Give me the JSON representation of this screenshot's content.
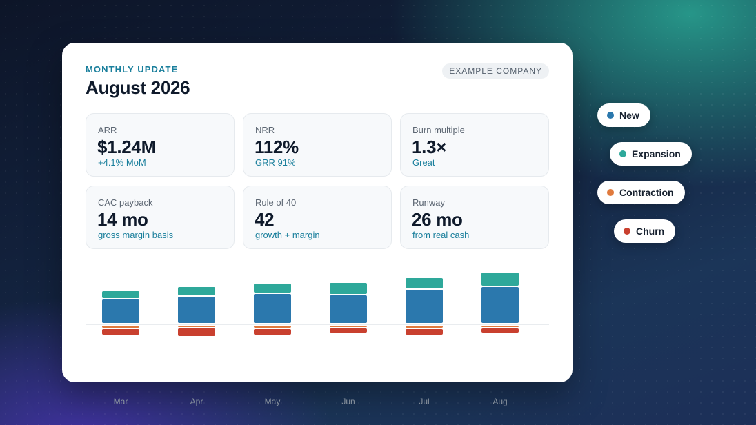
{
  "header": {
    "eyebrow": "MONTHLY UPDATE",
    "title": "August 2026",
    "company_badge": "EXAMPLE COMPANY"
  },
  "kpis": [
    {
      "label": "ARR",
      "value": "$1.24M",
      "sub": "+4.1% MoM"
    },
    {
      "label": "NRR",
      "value": "112%",
      "sub": "GRR 91%"
    },
    {
      "label": "Burn multiple",
      "value": "1.3×",
      "sub": "Great"
    },
    {
      "label": "CAC payback",
      "value": "14 mo",
      "sub": "gross margin basis"
    },
    {
      "label": "Rule of 40",
      "value": "42",
      "sub": "growth + margin"
    },
    {
      "label": "Runway",
      "value": "26 mo",
      "sub": "from real cash"
    }
  ],
  "legend": [
    {
      "label": "New",
      "color": "#2b78ad"
    },
    {
      "label": "Expansion",
      "color": "#2ea89a"
    },
    {
      "label": "Contraction",
      "color": "#e07a3d"
    },
    {
      "label": "Churn",
      "color": "#c9402f"
    }
  ],
  "chart_data": {
    "type": "bar",
    "stacked": true,
    "categories": [
      "Mar",
      "Apr",
      "May",
      "Jun",
      "Jul",
      "Aug"
    ],
    "series": [
      {
        "name": "New",
        "color": "#2b78ad",
        "values": [
          34,
          38,
          42,
          40,
          48,
          52
        ]
      },
      {
        "name": "Expansion",
        "color": "#2ea89a",
        "values": [
          10,
          12,
          13,
          16,
          15,
          19
        ]
      },
      {
        "name": "Contraction",
        "color": "#e07a3d",
        "values": [
          -3,
          -2,
          -3,
          -2,
          -3,
          -2
        ]
      },
      {
        "name": "Churn",
        "color": "#c9402f",
        "values": [
          -8,
          -11,
          -8,
          -6,
          -8,
          -6
        ]
      }
    ],
    "grid": false,
    "legend_position": "right"
  }
}
